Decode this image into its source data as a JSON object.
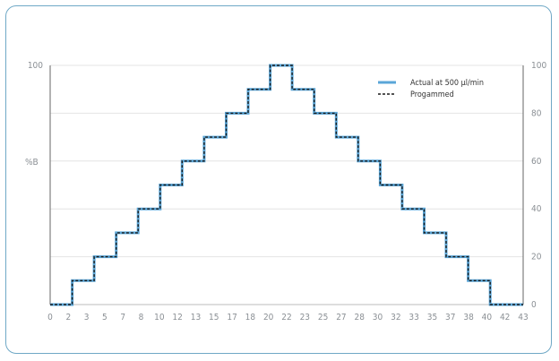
{
  "chart_data": {
    "type": "line",
    "ylabel": "%B",
    "ylim": [
      0,
      100
    ],
    "xlim": [
      0,
      43
    ],
    "x_tick_labels": [
      "0",
      "2",
      "3",
      "5",
      "7",
      "8",
      "10",
      "12",
      "13",
      "15",
      "17",
      "18",
      "20",
      "22",
      "23",
      "25",
      "27",
      "28",
      "30",
      "32",
      "33",
      "35",
      "37",
      "38",
      "40",
      "42",
      "43"
    ],
    "y_left_tick_labels": [
      "100"
    ],
    "y_right_tick_labels": [
      "0",
      "20",
      "40",
      "60",
      "80",
      "100"
    ],
    "grid": true,
    "legend_position": "top-right",
    "series": [
      {
        "name": "Actual at 500 µl/min",
        "color": "#5aa6d8",
        "x": [
          0,
          2,
          2,
          4,
          4,
          6,
          6,
          8,
          8,
          10,
          10,
          12,
          12,
          14,
          14,
          16,
          16,
          18,
          18,
          20,
          20,
          22,
          22,
          24,
          24,
          26,
          26,
          28,
          28,
          30,
          30,
          32,
          32,
          34,
          34,
          36,
          36,
          38,
          38,
          40,
          40,
          43
        ],
        "y": [
          0,
          0,
          10,
          10,
          20,
          20,
          30,
          30,
          40,
          40,
          50,
          50,
          60,
          60,
          70,
          70,
          80,
          80,
          90,
          90,
          100,
          100,
          90,
          90,
          80,
          80,
          70,
          70,
          60,
          60,
          50,
          50,
          40,
          40,
          30,
          30,
          20,
          20,
          10,
          10,
          0,
          0
        ]
      },
      {
        "name": "Progammed",
        "color": "#1a1a1a",
        "x": [
          0,
          2,
          2,
          4,
          4,
          6,
          6,
          8,
          8,
          10,
          10,
          12,
          12,
          14,
          14,
          16,
          16,
          18,
          18,
          20,
          20,
          22,
          22,
          24,
          24,
          26,
          26,
          28,
          28,
          30,
          30,
          32,
          32,
          34,
          34,
          36,
          36,
          38,
          38,
          40,
          40,
          43
        ],
        "y": [
          0,
          0,
          10,
          10,
          20,
          20,
          30,
          30,
          40,
          40,
          50,
          50,
          60,
          60,
          70,
          70,
          80,
          80,
          90,
          90,
          100,
          100,
          90,
          90,
          80,
          80,
          70,
          70,
          60,
          60,
          50,
          50,
          40,
          40,
          30,
          30,
          20,
          20,
          10,
          10,
          0,
          0
        ]
      }
    ]
  }
}
